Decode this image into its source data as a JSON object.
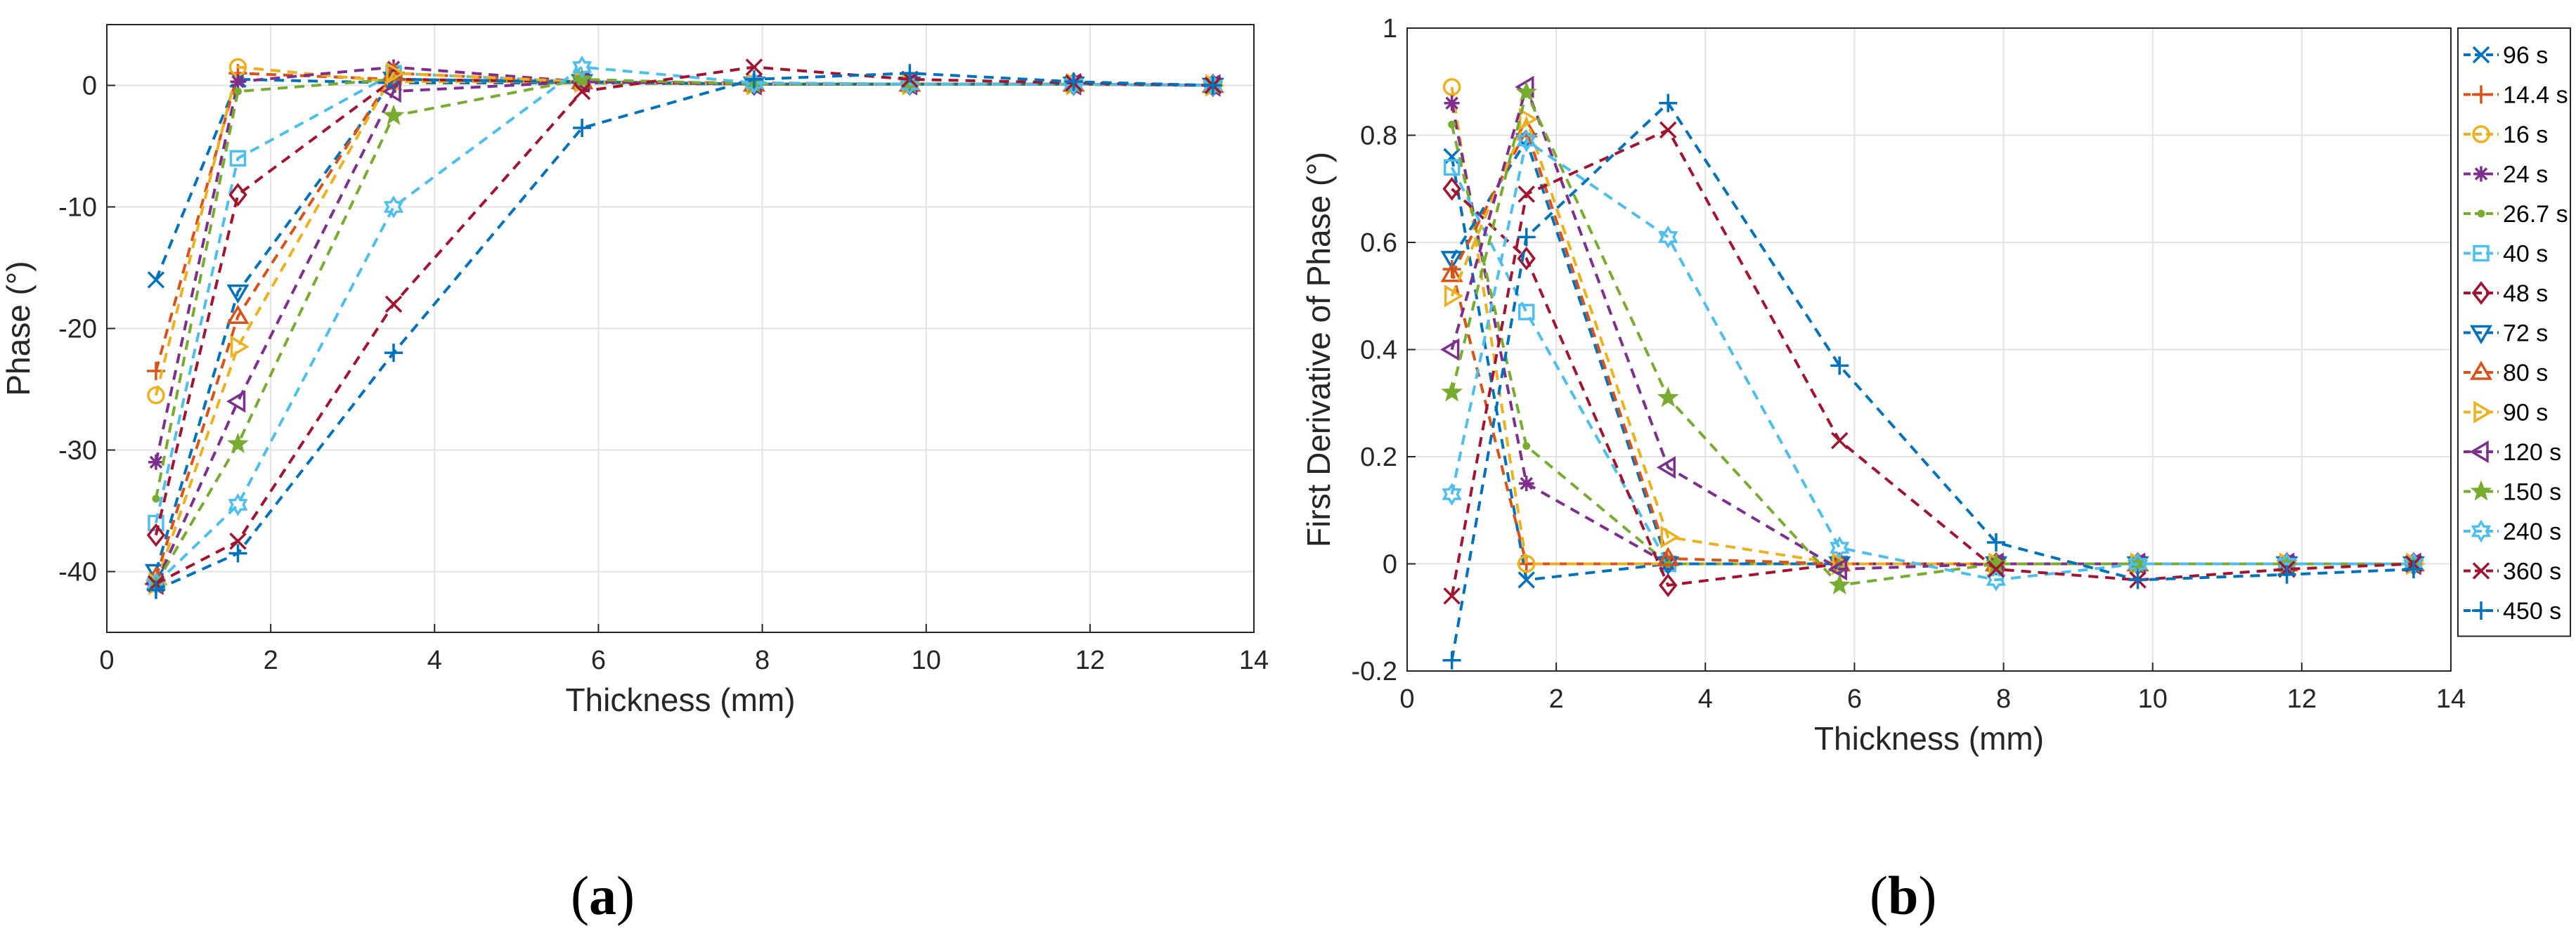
{
  "captions": {
    "a": "a",
    "b": "b"
  },
  "series_meta": [
    {
      "name": "96 s",
      "color": "#0072BD",
      "marker": "x"
    },
    {
      "name": "14.4 s",
      "color": "#D95319",
      "marker": "+"
    },
    {
      "name": "16 s",
      "color": "#EDB120",
      "marker": "o"
    },
    {
      "name": "24 s",
      "color": "#7E2F8E",
      "marker": "*"
    },
    {
      "name": "26.7 s",
      "color": "#77AC30",
      "marker": "."
    },
    {
      "name": "40 s",
      "color": "#4DBEEE",
      "marker": "s"
    },
    {
      "name": "48 s",
      "color": "#A2142F",
      "marker": "d"
    },
    {
      "name": "72 s",
      "color": "#0072BD",
      "marker": "v"
    },
    {
      "name": "80 s",
      "color": "#D95319",
      "marker": "^"
    },
    {
      "name": "90 s",
      "color": "#EDB120",
      "marker": ">"
    },
    {
      "name": "120 s",
      "color": "#7E2F8E",
      "marker": "<"
    },
    {
      "name": "150 s",
      "color": "#77AC30",
      "marker": "p"
    },
    {
      "name": "240 s",
      "color": "#4DBEEE",
      "marker": "h"
    },
    {
      "name": "360 s",
      "color": "#A2142F",
      "marker": "x"
    },
    {
      "name": "450 s",
      "color": "#0072BD",
      "marker": "+"
    }
  ],
  "chart_data": [
    {
      "id": "a",
      "type": "line",
      "title": "",
      "xlabel": "Thickness (mm)",
      "ylabel": "Phase  (°)",
      "xlim": [
        0,
        14
      ],
      "ylim": [
        -45,
        5
      ],
      "xticks": [
        0,
        2,
        4,
        6,
        8,
        10,
        12,
        14
      ],
      "yticks": [
        -40,
        -30,
        -20,
        -10,
        0
      ],
      "grid": true,
      "legend": "none",
      "series": [
        {
          "name": "96 s",
          "x": [
            0.6,
            1.6,
            3.5,
            5.8,
            7.9,
            9.8,
            11.8,
            13.5
          ],
          "values": [
            -16,
            0.5,
            0.2,
            0.2,
            0.1,
            0.1,
            0.1,
            0
          ]
        },
        {
          "name": "14.4 s",
          "x": [
            0.6,
            1.6,
            3.5,
            5.8,
            7.9,
            9.8,
            11.8,
            13.5
          ],
          "values": [
            -23.5,
            1,
            0.5,
            0.3,
            0.2,
            0.1,
            0.1,
            0
          ]
        },
        {
          "name": "16 s",
          "x": [
            0.6,
            1.6,
            3.5,
            5.8,
            7.9,
            9.8,
            11.8,
            13.5
          ],
          "values": [
            -25.5,
            1.5,
            0.3,
            0.3,
            0.1,
            0.1,
            0.1,
            0
          ]
        },
        {
          "name": "24 s",
          "x": [
            0.6,
            1.6,
            3.5,
            5.8,
            7.9,
            9.8,
            11.8,
            13.5
          ],
          "values": [
            -31,
            0.3,
            1.5,
            0.3,
            0.1,
            0.1,
            0.1,
            0
          ]
        },
        {
          "name": "26.7 s",
          "x": [
            0.6,
            1.6,
            3.5,
            5.8,
            7.9,
            9.8,
            11.8,
            13.5
          ],
          "values": [
            -34,
            -0.5,
            0.5,
            0.2,
            0.1,
            0.1,
            0.1,
            0
          ]
        },
        {
          "name": "40 s",
          "x": [
            0.6,
            1.6,
            3.5,
            5.8,
            7.9,
            9.8,
            11.8,
            13.5
          ],
          "values": [
            -36,
            -6,
            1,
            0.3,
            0.1,
            0.1,
            0.1,
            0
          ]
        },
        {
          "name": "48 s",
          "x": [
            0.6,
            1.6,
            3.5,
            5.8,
            7.9,
            9.8,
            11.8,
            13.5
          ],
          "values": [
            -37,
            -9,
            0.5,
            0.3,
            0.1,
            0.1,
            0.1,
            0
          ]
        },
        {
          "name": "72 s",
          "x": [
            0.6,
            1.6,
            3.5,
            5.8,
            7.9,
            9.8,
            11.8,
            13.5
          ],
          "values": [
            -40,
            -17,
            0.5,
            0.3,
            0.1,
            0.1,
            0.1,
            0
          ]
        },
        {
          "name": "80 s",
          "x": [
            0.6,
            1.6,
            3.5,
            5.8,
            7.9,
            9.8,
            11.8,
            13.5
          ],
          "values": [
            -40.5,
            -19,
            1,
            0.3,
            0.1,
            0.1,
            0.1,
            0
          ]
        },
        {
          "name": "90 s",
          "x": [
            0.6,
            1.6,
            3.5,
            5.8,
            7.9,
            9.8,
            11.8,
            13.5
          ],
          "values": [
            -41,
            -21.5,
            1,
            0.3,
            0.1,
            0.1,
            0.1,
            0
          ]
        },
        {
          "name": "120 s",
          "x": [
            0.6,
            1.6,
            3.5,
            5.8,
            7.9,
            9.8,
            11.8,
            13.5
          ],
          "values": [
            -41,
            -26,
            -0.5,
            0.3,
            0.1,
            0.1,
            0.1,
            0
          ]
        },
        {
          "name": "150 s",
          "x": [
            0.6,
            1.6,
            3.5,
            5.8,
            7.9,
            9.8,
            11.8,
            13.5
          ],
          "values": [
            -41,
            -29.5,
            -2.5,
            0.5,
            0.1,
            0.1,
            0.1,
            0
          ]
        },
        {
          "name": "240 s",
          "x": [
            0.6,
            1.6,
            3.5,
            5.8,
            7.9,
            9.8,
            11.8,
            13.5
          ],
          "values": [
            -41,
            -34.5,
            -10,
            1.5,
            0.2,
            0.1,
            0.1,
            0
          ]
        },
        {
          "name": "360 s",
          "x": [
            0.6,
            1.6,
            3.5,
            5.8,
            7.9,
            9.8,
            11.8,
            13.5
          ],
          "values": [
            -41,
            -37.5,
            -18,
            -0.5,
            1.5,
            0.5,
            0.2,
            0
          ]
        },
        {
          "name": "450 s",
          "x": [
            0.6,
            1.6,
            3.5,
            5.8,
            7.9,
            9.8,
            11.8,
            13.5
          ],
          "values": [
            -41.5,
            -38.5,
            -22,
            -3.5,
            0.5,
            1,
            0.3,
            0
          ]
        }
      ]
    },
    {
      "id": "b",
      "type": "line",
      "title": "",
      "xlabel": "Thickness (mm)",
      "ylabel": "First Derivative of Phase  (°)",
      "xlim": [
        0,
        14
      ],
      "ylim": [
        -0.2,
        1
      ],
      "xticks": [
        0,
        2,
        4,
        6,
        8,
        10,
        12,
        14
      ],
      "yticks": [
        -0.2,
        0,
        0.2,
        0.4,
        0.6,
        0.8,
        1
      ],
      "ytick_labels": [
        "-0.2",
        "0",
        "0.2",
        "0.4",
        "0.6",
        "0.8",
        "1"
      ],
      "grid": true,
      "legend": "right-outside",
      "series": [
        {
          "name": "96 s",
          "x": [
            0.6,
            1.6,
            3.5,
            5.8,
            7.9,
            9.8,
            11.8,
            13.5
          ],
          "values": [
            0.76,
            -0.03,
            0,
            0,
            0,
            0,
            0,
            0
          ]
        },
        {
          "name": "14.4 s",
          "x": [
            0.6,
            1.6,
            3.5,
            5.8,
            7.9,
            9.8,
            11.8,
            13.5
          ],
          "values": [
            0.55,
            0,
            0,
            0,
            0,
            0,
            0,
            0
          ]
        },
        {
          "name": "16 s",
          "x": [
            0.6,
            1.6,
            3.5,
            5.8,
            7.9,
            9.8,
            11.8,
            13.5
          ],
          "values": [
            0.89,
            0,
            0,
            0,
            0,
            0,
            0,
            0
          ]
        },
        {
          "name": "24 s",
          "x": [
            0.6,
            1.6,
            3.5,
            5.8,
            7.9,
            9.8,
            11.8,
            13.5
          ],
          "values": [
            0.86,
            0.15,
            0,
            0,
            0,
            0,
            0,
            0
          ]
        },
        {
          "name": "26.7 s",
          "x": [
            0.6,
            1.6,
            3.5,
            5.8,
            7.9,
            9.8,
            11.8,
            13.5
          ],
          "values": [
            0.82,
            0.22,
            0,
            0,
            0,
            0,
            0,
            0
          ]
        },
        {
          "name": "40 s",
          "x": [
            0.6,
            1.6,
            3.5,
            5.8,
            7.9,
            9.8,
            11.8,
            13.5
          ],
          "values": [
            0.74,
            0.47,
            0,
            0,
            0,
            0,
            0,
            0
          ]
        },
        {
          "name": "48 s",
          "x": [
            0.6,
            1.6,
            3.5,
            5.8,
            7.9,
            9.8,
            11.8,
            13.5
          ],
          "values": [
            0.7,
            0.57,
            -0.04,
            0,
            0,
            0,
            0,
            0
          ]
        },
        {
          "name": "72 s",
          "x": [
            0.6,
            1.6,
            3.5,
            5.8,
            7.9,
            9.8,
            11.8,
            13.5
          ],
          "values": [
            0.57,
            0.79,
            0,
            0,
            0,
            0,
            0,
            0
          ]
        },
        {
          "name": "80 s",
          "x": [
            0.6,
            1.6,
            3.5,
            5.8,
            7.9,
            9.8,
            11.8,
            13.5
          ],
          "values": [
            0.54,
            0.81,
            0.01,
            0,
            0,
            0,
            0,
            0
          ]
        },
        {
          "name": "90 s",
          "x": [
            0.6,
            1.6,
            3.5,
            5.8,
            7.9,
            9.8,
            11.8,
            13.5
          ],
          "values": [
            0.5,
            0.83,
            0.05,
            0,
            0,
            0,
            0,
            0
          ]
        },
        {
          "name": "120 s",
          "x": [
            0.6,
            1.6,
            3.5,
            5.8,
            7.9,
            9.8,
            11.8,
            13.5
          ],
          "values": [
            0.4,
            0.89,
            0.18,
            -0.01,
            0,
            0,
            0,
            0
          ]
        },
        {
          "name": "150 s",
          "x": [
            0.6,
            1.6,
            3.5,
            5.8,
            7.9,
            9.8,
            11.8,
            13.5
          ],
          "values": [
            0.32,
            0.88,
            0.31,
            -0.04,
            0,
            0,
            0,
            0
          ]
        },
        {
          "name": "240 s",
          "x": [
            0.6,
            1.6,
            3.5,
            5.8,
            7.9,
            9.8,
            11.8,
            13.5
          ],
          "values": [
            0.13,
            0.79,
            0.61,
            0.03,
            -0.03,
            0,
            0,
            0
          ]
        },
        {
          "name": "360 s",
          "x": [
            0.6,
            1.6,
            3.5,
            5.8,
            7.9,
            9.8,
            11.8,
            13.5
          ],
          "values": [
            -0.06,
            0.69,
            0.81,
            0.23,
            -0.01,
            -0.03,
            -0.01,
            0
          ]
        },
        {
          "name": "450 s",
          "x": [
            0.6,
            1.6,
            3.5,
            5.8,
            7.9,
            9.8,
            11.8,
            13.5
          ],
          "values": [
            -0.18,
            0.61,
            0.86,
            0.37,
            0.04,
            -0.03,
            -0.02,
            -0.01
          ]
        }
      ]
    }
  ]
}
